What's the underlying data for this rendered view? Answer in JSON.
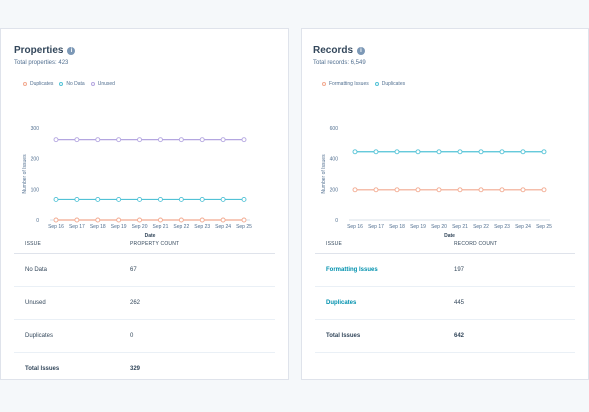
{
  "properties": {
    "title": "Properties",
    "total": "Total properties: 423",
    "legend": [
      {
        "label": "Duplicates",
        "color": "#f2a98f"
      },
      {
        "label": "No Data",
        "color": "#51c2d6"
      },
      {
        "label": "Unused",
        "color": "#b4a6e0"
      }
    ],
    "table": {
      "headers": [
        "ISSUE",
        "PROPERTY COUNT"
      ],
      "rows": [
        {
          "issue": "No Data",
          "count": "67"
        },
        {
          "issue": "Unused",
          "count": "262"
        },
        {
          "issue": "Duplicates",
          "count": "0"
        },
        {
          "issue": "Total Issues",
          "count": "329"
        }
      ]
    }
  },
  "records": {
    "title": "Records",
    "total": "Total records: 6,549",
    "legend": [
      {
        "label": "Formatting Issues",
        "color": "#f2a98f"
      },
      {
        "label": "Duplicates",
        "color": "#51c2d6"
      }
    ],
    "table": {
      "headers": [
        "ISSUE",
        "RECORD COUNT"
      ],
      "rows": [
        {
          "issue": "Formatting Issues",
          "count": "197"
        },
        {
          "issue": "Duplicates",
          "count": "445"
        },
        {
          "issue": "Total Issues",
          "count": "642"
        }
      ]
    }
  },
  "chart_data": [
    {
      "type": "line",
      "title": "",
      "xlabel": "Date",
      "ylabel": "Number of Issues",
      "x": [
        "Sep 16",
        "Sep 17",
        "Sep 18",
        "Sep 19",
        "Sep 20",
        "Sep 21",
        "Sep 22",
        "Sep 23",
        "Sep 24",
        "Sep 25"
      ],
      "yticks": [
        0,
        100,
        200,
        300
      ],
      "ylim": [
        0,
        300
      ],
      "grid": false,
      "legend_position": "top-left",
      "series": [
        {
          "name": "Duplicates",
          "color": "#f2a98f",
          "values": [
            0,
            0,
            0,
            0,
            0,
            0,
            0,
            0,
            0,
            0
          ]
        },
        {
          "name": "No Data",
          "color": "#51c2d6",
          "values": [
            67,
            67,
            67,
            67,
            67,
            67,
            67,
            67,
            67,
            67
          ]
        },
        {
          "name": "Unused",
          "color": "#b4a6e0",
          "values": [
            262,
            262,
            262,
            262,
            262,
            262,
            262,
            262,
            262,
            262
          ]
        }
      ]
    },
    {
      "type": "line",
      "title": "",
      "xlabel": "Date",
      "ylabel": "Number of Issues",
      "x": [
        "Sep 16",
        "Sep 17",
        "Sep 18",
        "Sep 19",
        "Sep 20",
        "Sep 21",
        "Sep 22",
        "Sep 23",
        "Sep 24",
        "Sep 25"
      ],
      "yticks": [
        0,
        200,
        400,
        600
      ],
      "ylim": [
        0,
        600
      ],
      "grid": false,
      "legend_position": "top-left",
      "series": [
        {
          "name": "Formatting Issues",
          "color": "#f2a98f",
          "values": [
            197,
            197,
            197,
            197,
            197,
            197,
            197,
            197,
            197,
            197
          ]
        },
        {
          "name": "Duplicates",
          "color": "#51c2d6",
          "values": [
            445,
            445,
            445,
            445,
            445,
            445,
            445,
            445,
            445,
            445
          ]
        }
      ]
    }
  ]
}
